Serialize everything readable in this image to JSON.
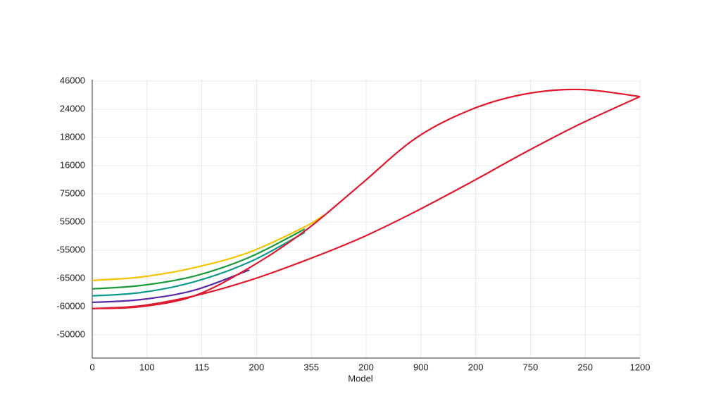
{
  "chart_data": {
    "type": "line",
    "xlabel": "Model",
    "xlim": [
      0,
      10
    ],
    "xticks": [
      {
        "value": 0,
        "label": "0"
      },
      {
        "value": 1,
        "label": "100"
      },
      {
        "value": 2,
        "label": "115"
      },
      {
        "value": 3,
        "label": "200"
      },
      {
        "value": 4,
        "label": "355"
      },
      {
        "value": 5,
        "label": "200"
      },
      {
        "value": 6,
        "label": "900"
      },
      {
        "value": 7,
        "label": "200"
      },
      {
        "value": 8,
        "label": "750"
      },
      {
        "value": 9,
        "label": "250"
      },
      {
        "value": 10,
        "label": "1200"
      }
    ],
    "ylim": [
      -0.825,
      9.05
    ],
    "yticks": [
      {
        "value": 0,
        "label": "-50000"
      },
      {
        "value": 1,
        "label": "-60000"
      },
      {
        "value": 2,
        "label": "-65000"
      },
      {
        "value": 3,
        "label": "-55000"
      },
      {
        "value": 4,
        "label": "55000"
      },
      {
        "value": 5,
        "label": "75000"
      },
      {
        "value": 6,
        "label": "16000"
      },
      {
        "value": 7,
        "label": "18000"
      },
      {
        "value": 8,
        "label": "24000"
      },
      {
        "value": 9,
        "label": "46000"
      }
    ],
    "grid": true,
    "series": [
      {
        "color": "#f2c500",
        "x": [
          0,
          0.89,
          1.86,
          2.87,
          3.88,
          4.23
        ],
        "values": [
          1.93,
          2.05,
          2.38,
          2.93,
          3.83,
          4.25
        ]
      },
      {
        "color": "#1a9a3a",
        "x": [
          0,
          0.89,
          1.86,
          2.87,
          3.88
        ],
        "values": [
          1.63,
          1.75,
          2.08,
          2.75,
          3.75
        ]
      },
      {
        "color": "#0e9a8a",
        "x": [
          0,
          0.89,
          1.86,
          2.87,
          3.88
        ],
        "values": [
          1.38,
          1.5,
          1.88,
          2.58,
          3.63
        ]
      },
      {
        "color": "#5b2aa8",
        "x": [
          0,
          0.89,
          1.86,
          2.87
        ],
        "values": [
          1.15,
          1.25,
          1.58,
          2.3
        ]
      },
      {
        "color": "#e0192c",
        "x": [
          0,
          0.89,
          1.86,
          2.87,
          3.88,
          4.9,
          5.91,
          6.93,
          7.93,
          8.93,
          10
        ],
        "values": [
          0.93,
          1.0,
          1.38,
          2.38,
          3.68,
          5.33,
          6.98,
          8.0,
          8.55,
          8.7,
          8.45
        ]
      },
      {
        "color": "#e0192c",
        "x": [
          0,
          0.89,
          1.86,
          2.87,
          3.88,
          4.9,
          5.91,
          6.93,
          7.93,
          8.93,
          10
        ],
        "values": [
          0.93,
          1.03,
          1.38,
          1.93,
          2.63,
          3.43,
          4.38,
          5.43,
          6.5,
          7.5,
          8.45
        ]
      }
    ]
  }
}
